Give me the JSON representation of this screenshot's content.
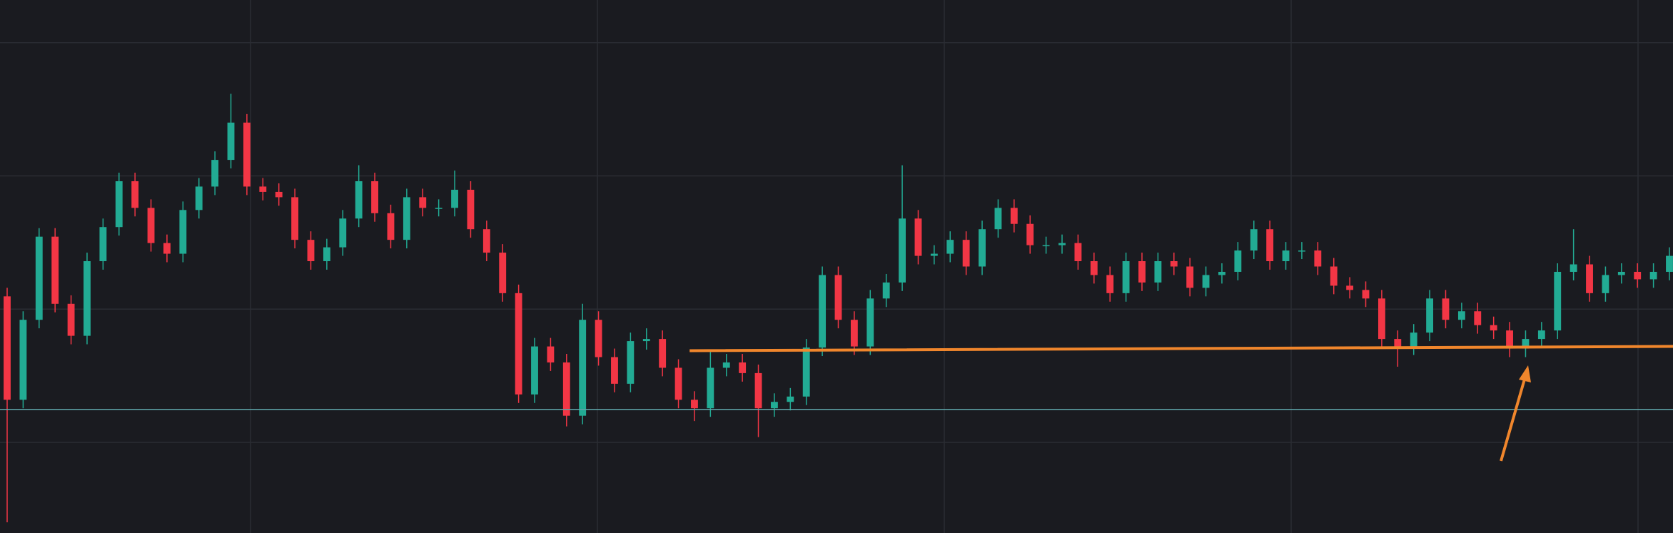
{
  "chart_data": {
    "type": "candlestick",
    "up_color": "#22ab94",
    "down_color": "#f23645",
    "ylim": [
      0,
      500
    ],
    "yticks": [
      85,
      210,
      335,
      460
    ],
    "grid": true,
    "open": [
      222,
      125,
      200,
      278,
      215,
      185,
      255,
      287,
      330,
      305,
      272,
      262,
      303,
      325,
      350,
      385,
      325,
      320,
      315,
      275,
      255,
      268,
      295,
      330,
      300,
      275,
      315,
      305,
      305,
      322,
      285,
      263,
      225,
      130,
      175,
      160,
      110,
      200,
      165,
      140,
      180,
      182,
      155,
      125,
      117,
      155,
      160,
      150,
      117,
      123,
      128,
      174,
      242,
      200,
      175,
      220,
      235,
      295,
      260,
      262,
      275,
      250,
      285,
      305,
      290,
      270,
      270,
      272,
      255,
      242,
      225,
      255,
      235,
      255,
      250,
      230,
      242,
      245,
      265,
      285,
      255,
      265,
      265,
      250,
      232,
      228,
      220,
      182,
      175,
      188,
      220,
      200,
      208,
      195,
      190,
      173,
      182,
      190,
      245,
      252,
      225,
      242,
      245,
      238,
      245
    ],
    "high": [
      230,
      208,
      286,
      286,
      223,
      263,
      295,
      338,
      338,
      313,
      280,
      311,
      333,
      358,
      412,
      393,
      333,
      328,
      323,
      283,
      276,
      303,
      345,
      338,
      308,
      323,
      323,
      313,
      340,
      330,
      293,
      271,
      233,
      183,
      183,
      168,
      215,
      208,
      173,
      188,
      192,
      190,
      163,
      133,
      170,
      168,
      168,
      158,
      131,
      136,
      182,
      250,
      250,
      208,
      228,
      243,
      345,
      303,
      270,
      283,
      283,
      293,
      313,
      313,
      298,
      278,
      280,
      280,
      263,
      250,
      263,
      263,
      263,
      263,
      258,
      250,
      253,
      273,
      293,
      293,
      273,
      273,
      273,
      258,
      240,
      236,
      228,
      190,
      196,
      228,
      228,
      216,
      216,
      203,
      198,
      190,
      198,
      253,
      285,
      260,
      250,
      253,
      253,
      253,
      268
    ],
    "low": [
      10,
      117,
      192,
      207,
      177,
      177,
      247,
      279,
      297,
      264,
      254,
      254,
      295,
      317,
      342,
      317,
      312,
      307,
      267,
      247,
      247,
      260,
      287,
      292,
      267,
      267,
      297,
      297,
      297,
      277,
      255,
      217,
      122,
      122,
      152,
      100,
      102,
      157,
      132,
      132,
      172,
      147,
      117,
      105,
      109,
      147,
      142,
      90,
      109,
      115,
      120,
      166,
      192,
      167,
      167,
      212,
      227,
      252,
      252,
      254,
      242,
      242,
      277,
      282,
      262,
      262,
      262,
      247,
      234,
      217,
      217,
      227,
      227,
      242,
      222,
      222,
      234,
      237,
      257,
      247,
      247,
      257,
      242,
      224,
      220,
      212,
      174,
      156,
      167,
      180,
      192,
      192,
      187,
      182,
      165,
      165,
      174,
      182,
      237,
      217,
      217,
      234,
      230,
      230,
      237
    ],
    "close": [
      125,
      200,
      278,
      215,
      185,
      255,
      287,
      330,
      305,
      272,
      262,
      303,
      325,
      350,
      385,
      325,
      320,
      315,
      275,
      255,
      268,
      295,
      330,
      300,
      275,
      315,
      305,
      305,
      322,
      285,
      263,
      225,
      130,
      175,
      160,
      110,
      200,
      165,
      140,
      180,
      182,
      155,
      125,
      117,
      155,
      160,
      150,
      117,
      123,
      128,
      174,
      242,
      200,
      175,
      220,
      235,
      295,
      260,
      262,
      275,
      250,
      285,
      305,
      290,
      270,
      270,
      272,
      255,
      242,
      225,
      255,
      235,
      255,
      250,
      230,
      242,
      245,
      265,
      285,
      255,
      265,
      265,
      250,
      232,
      228,
      220,
      182,
      175,
      188,
      220,
      200,
      208,
      195,
      190,
      173,
      182,
      190,
      245,
      252,
      225,
      242,
      245,
      238,
      245,
      260
    ],
    "horizontal_line": {
      "value": 116,
      "color": "#5fa5a8"
    },
    "trend_line": {
      "start": 43,
      "end": 104,
      "values": [
        171,
        175
      ],
      "color": "#f0862c"
    }
  }
}
